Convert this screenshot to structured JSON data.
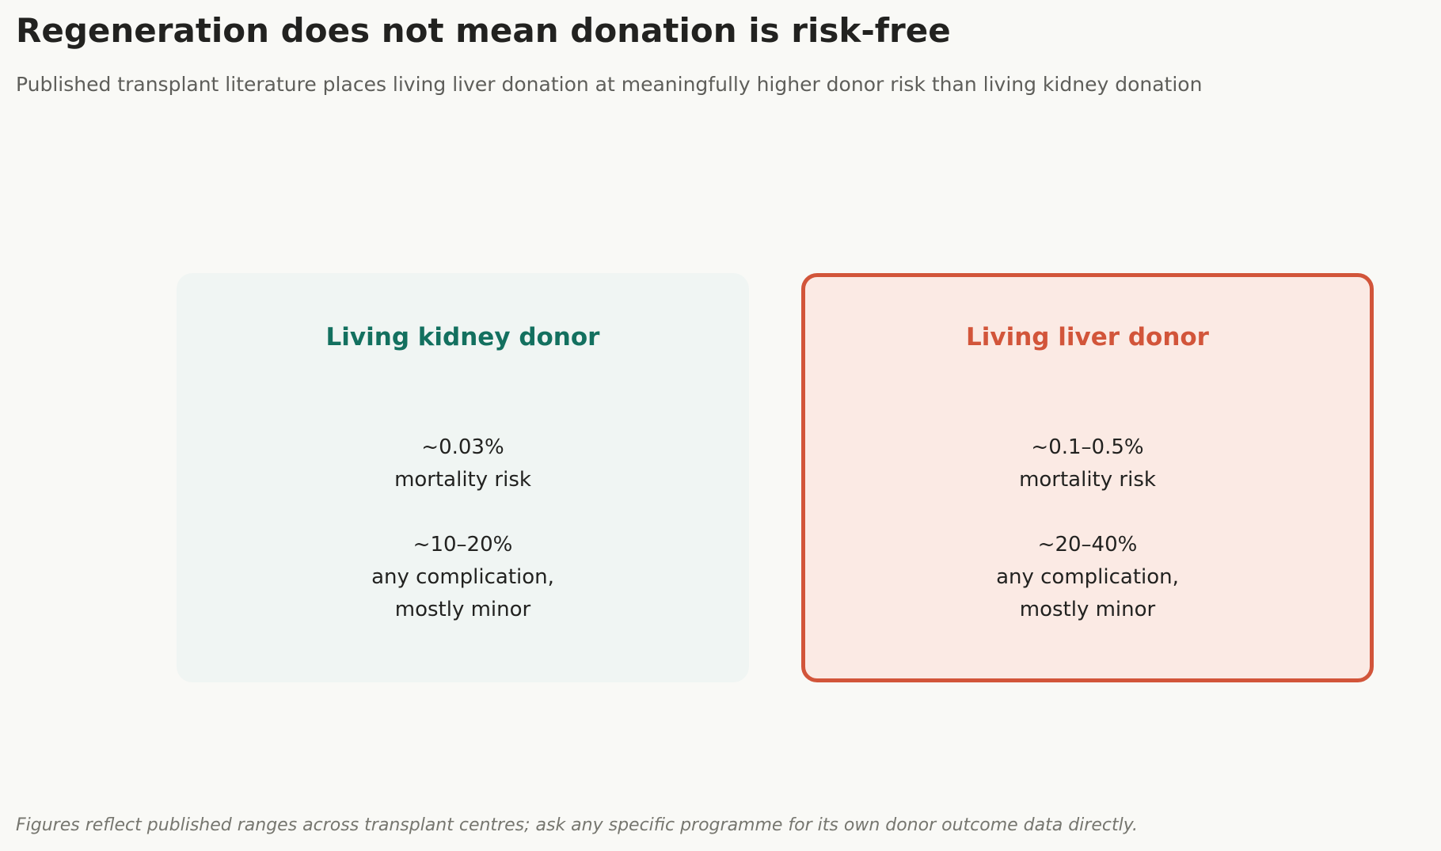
{
  "header": {
    "title": "Regeneration does not mean donation is risk-free",
    "subtitle": "Published transplant literature places living liver donation at meaningfully higher donor risk than living kidney donation"
  },
  "cards": [
    {
      "title": "Living kidney donor",
      "accent": "#13705f",
      "background": "#f0f5f3",
      "mortality_value": "~0.03%",
      "mortality_label": "mortality risk",
      "complication_value": "~10–20%",
      "complication_label_1": "any complication,",
      "complication_label_2": "mostly minor"
    },
    {
      "title": "Living liver donor",
      "accent": "#d2553a",
      "background": "#fbeae4",
      "mortality_value": "~0.1–0.5%",
      "mortality_label": "mortality risk",
      "complication_value": "~20–40%",
      "complication_label_1": "any complication,",
      "complication_label_2": "mostly minor"
    }
  ],
  "footnote": "Figures reflect published ranges across transplant centres; ask any specific programme for its own donor outcome data directly."
}
